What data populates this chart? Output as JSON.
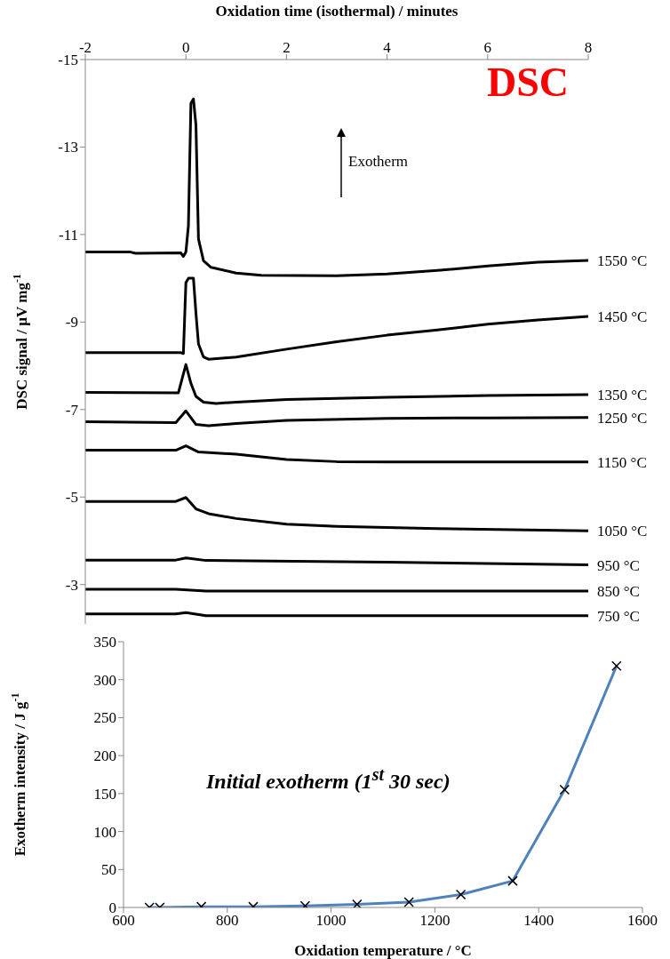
{
  "chart_data": [
    {
      "type": "line",
      "xlabel": "Oxidation time (isothermal) / minutes",
      "ylabel": "DSC signal  / µV mg$^{-1}$",
      "xlim": [
        -2,
        8
      ],
      "xticks": [
        -2,
        0,
        2,
        4,
        6,
        8
      ],
      "ylim": [
        -2.1,
        -15
      ],
      "yticks": [
        -15,
        -13,
        -11,
        -9,
        -7,
        -5,
        -3
      ],
      "marker": "none",
      "line_style": "solid",
      "annotations": [
        "DSC",
        "Exotherm"
      ],
      "series": [
        {
          "name": "1550 °C",
          "color": "#000000",
          "x": [
            -2,
            -1.1,
            -1,
            -0.1,
            -0.05,
            0,
            0.05,
            0.1,
            0.15,
            0.2,
            0.25,
            0.35,
            0.5,
            1,
            1.5,
            3,
            4,
            5,
            6,
            7,
            8
          ],
          "values": [
            -10.6,
            -10.6,
            -10.57,
            -10.58,
            -10.5,
            -10.6,
            -11.2,
            -14.0,
            -14.1,
            -13.5,
            -10.9,
            -10.4,
            -10.25,
            -10.12,
            -10.07,
            -10.06,
            -10.1,
            -10.18,
            -10.28,
            -10.37,
            -10.41
          ]
        },
        {
          "name": "1450 °C",
          "color": "#000000",
          "x": [
            -2,
            -0.1,
            -0.05,
            0,
            0.05,
            0.15,
            0.2,
            0.25,
            0.35,
            0.45,
            1,
            2,
            3,
            4,
            5,
            6,
            7,
            8
          ],
          "values": [
            -8.3,
            -8.3,
            -8.28,
            -9.9,
            -10.0,
            -10.0,
            -9.2,
            -8.5,
            -8.2,
            -8.15,
            -8.2,
            -8.38,
            -8.55,
            -8.7,
            -8.82,
            -8.95,
            -9.05,
            -9.13
          ]
        },
        {
          "name": "1350 °C",
          "color": "#000000",
          "x": [
            -2,
            -0.15,
            0,
            0.1,
            0.2,
            0.35,
            0.6,
            1,
            2,
            4,
            6,
            8
          ],
          "values": [
            -7.39,
            -7.38,
            -8.03,
            -7.6,
            -7.3,
            -7.17,
            -7.14,
            -7.17,
            -7.23,
            -7.28,
            -7.32,
            -7.34
          ]
        },
        {
          "name": "1250 °C",
          "color": "#000000",
          "x": [
            -2,
            -0.2,
            0,
            0.2,
            0.45,
            1,
            2,
            4,
            6,
            8
          ],
          "values": [
            -6.72,
            -6.7,
            -6.97,
            -6.66,
            -6.63,
            -6.68,
            -6.75,
            -6.8,
            -6.81,
            -6.82
          ]
        },
        {
          "name": "1150 °C",
          "color": "#000000",
          "x": [
            -2,
            -0.2,
            0,
            0.25,
            1,
            2,
            3,
            4,
            8
          ],
          "values": [
            -6.07,
            -6.07,
            -6.17,
            -6.03,
            -5.98,
            -5.86,
            -5.81,
            -5.8,
            -5.8
          ]
        },
        {
          "name": "1050 °C",
          "color": "#000000",
          "x": [
            -2,
            -0.2,
            0,
            0.2,
            0.45,
            1,
            2,
            3,
            5,
            8
          ],
          "values": [
            -4.9,
            -4.9,
            -4.99,
            -4.73,
            -4.62,
            -4.51,
            -4.38,
            -4.33,
            -4.28,
            -4.23
          ]
        },
        {
          "name": "950 °C",
          "color": "#000000",
          "x": [
            -2,
            -0.2,
            0,
            0.4,
            4,
            8
          ],
          "values": [
            -3.56,
            -3.56,
            -3.61,
            -3.55,
            -3.51,
            -3.45
          ]
        },
        {
          "name": "850 °C",
          "color": "#000000",
          "x": [
            -2,
            -0.2,
            0.4,
            8
          ],
          "values": [
            -2.89,
            -2.89,
            -2.85,
            -2.85
          ]
        },
        {
          "name": "750 °C",
          "color": "#000000",
          "x": [
            -2,
            -0.2,
            0,
            0.4,
            8
          ],
          "values": [
            -2.33,
            -2.33,
            -2.36,
            -2.29,
            -2.29
          ]
        }
      ]
    },
    {
      "type": "line",
      "xlabel": "Oxidation temperature / °C",
      "ylabel": "Exotherm intensity / J g$^{-1}$",
      "xlim": [
        600,
        1600
      ],
      "xticks": [
        600,
        800,
        1000,
        1200,
        1400,
        1600
      ],
      "ylim": [
        0,
        350
      ],
      "yticks": [
        0,
        50,
        100,
        150,
        200,
        250,
        300,
        350
      ],
      "marker": "cross",
      "line_style": "solid",
      "annotations": [
        "Initial exotherm (1$^{st}$ 30 sec)"
      ],
      "series": [
        {
          "color": "#4f81bd",
          "x": [
            650,
            670,
            750,
            850,
            950,
            1050,
            1150,
            1250,
            1350,
            1450,
            1550
          ],
          "values": [
            0,
            0,
            1,
            1,
            2,
            4,
            7,
            17,
            35,
            155,
            318
          ]
        }
      ]
    }
  ]
}
